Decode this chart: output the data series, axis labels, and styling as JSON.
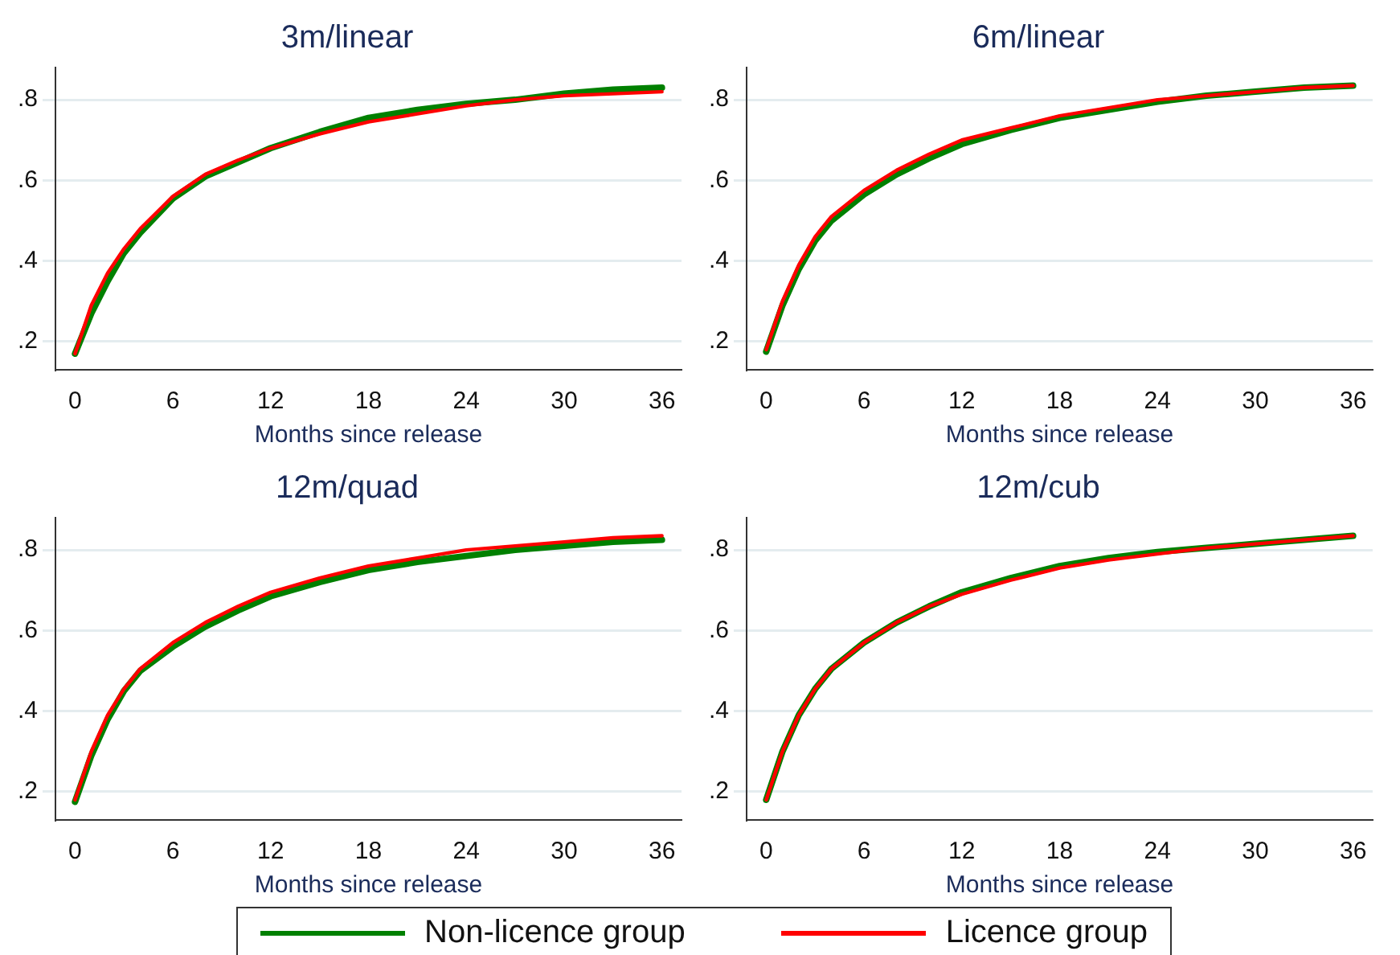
{
  "chart_data": [
    {
      "type": "line",
      "title": "3m/linear",
      "xlabel": "Months since release",
      "x": [
        0,
        1,
        2,
        3,
        4,
        6,
        8,
        10,
        12,
        15,
        18,
        21,
        24,
        27,
        30,
        33,
        36
      ],
      "xlim": [
        -1.2,
        37.2
      ],
      "xticks": [
        0,
        6,
        12,
        18,
        24,
        30,
        36
      ],
      "ylim": [
        0.13,
        0.88
      ],
      "yticks": [
        {
          "value": 0.2,
          "label": ".2"
        },
        {
          "value": 0.4,
          "label": ".4"
        },
        {
          "value": 0.6,
          "label": ".6"
        },
        {
          "value": 0.8,
          "label": ".8"
        }
      ],
      "grid": "y",
      "marker": "none",
      "line_style": "solid",
      "legend": "bottom",
      "series": [
        {
          "name": "Non-licence group",
          "color": "#008000",
          "values": [
            0.17,
            0.27,
            0.35,
            0.42,
            0.47,
            0.555,
            0.61,
            0.645,
            0.68,
            0.72,
            0.755,
            0.775,
            0.79,
            0.8,
            0.815,
            0.825,
            0.83
          ]
        },
        {
          "name": "Licence group",
          "color": "#ff0000",
          "values": [
            0.17,
            0.29,
            0.37,
            0.43,
            0.48,
            0.56,
            0.615,
            0.65,
            0.68,
            0.715,
            0.745,
            0.765,
            0.785,
            0.8,
            0.81,
            0.815,
            0.82
          ]
        }
      ]
    },
    {
      "type": "line",
      "title": "6m/linear",
      "xlabel": "Months since release",
      "x": [
        0,
        1,
        2,
        3,
        4,
        6,
        8,
        10,
        12,
        15,
        18,
        21,
        24,
        27,
        30,
        33,
        36
      ],
      "xlim": [
        -1.2,
        37.2
      ],
      "xticks": [
        0,
        6,
        12,
        18,
        24,
        30,
        36
      ],
      "ylim": [
        0.13,
        0.88
      ],
      "yticks": [
        {
          "value": 0.2,
          "label": ".2"
        },
        {
          "value": 0.4,
          "label": ".4"
        },
        {
          "value": 0.6,
          "label": ".6"
        },
        {
          "value": 0.8,
          "label": ".8"
        }
      ],
      "grid": "y",
      "marker": "none",
      "line_style": "solid",
      "series": [
        {
          "color": "#008000",
          "values": [
            0.175,
            0.29,
            0.38,
            0.45,
            0.5,
            0.565,
            0.615,
            0.655,
            0.69,
            0.725,
            0.755,
            0.775,
            0.795,
            0.81,
            0.82,
            0.83,
            0.835
          ]
        },
        {
          "color": "#ff0000",
          "values": [
            0.18,
            0.3,
            0.39,
            0.46,
            0.51,
            0.575,
            0.625,
            0.665,
            0.7,
            0.73,
            0.76,
            0.78,
            0.8,
            0.81,
            0.82,
            0.83,
            0.835
          ]
        }
      ]
    },
    {
      "type": "line",
      "title": "12m/quad",
      "xlabel": "Months since release",
      "x": [
        0,
        1,
        2,
        3,
        4,
        6,
        8,
        10,
        12,
        15,
        18,
        21,
        24,
        27,
        30,
        33,
        36
      ],
      "xlim": [
        -1.2,
        37.2
      ],
      "xticks": [
        0,
        6,
        12,
        18,
        24,
        30,
        36
      ],
      "ylim": [
        0.13,
        0.88
      ],
      "yticks": [
        {
          "value": 0.2,
          "label": ".2"
        },
        {
          "value": 0.4,
          "label": ".4"
        },
        {
          "value": 0.6,
          "label": ".6"
        },
        {
          "value": 0.8,
          "label": ".8"
        }
      ],
      "grid": "y",
      "marker": "none",
      "line_style": "solid",
      "series": [
        {
          "color": "#008000",
          "values": [
            0.175,
            0.29,
            0.38,
            0.45,
            0.5,
            0.56,
            0.61,
            0.65,
            0.685,
            0.72,
            0.75,
            0.77,
            0.785,
            0.8,
            0.81,
            0.82,
            0.825
          ]
        },
        {
          "color": "#ff0000",
          "values": [
            0.18,
            0.3,
            0.39,
            0.455,
            0.505,
            0.57,
            0.62,
            0.66,
            0.695,
            0.73,
            0.76,
            0.78,
            0.8,
            0.81,
            0.82,
            0.83,
            0.835
          ]
        }
      ]
    },
    {
      "type": "line",
      "title": "12m/cub",
      "xlabel": "Months since release",
      "x": [
        0,
        1,
        2,
        3,
        4,
        6,
        8,
        10,
        12,
        15,
        18,
        21,
        24,
        27,
        30,
        33,
        36
      ],
      "xlim": [
        -1.2,
        37.2
      ],
      "xticks": [
        0,
        6,
        12,
        18,
        24,
        30,
        36
      ],
      "ylim": [
        0.13,
        0.88
      ],
      "yticks": [
        {
          "value": 0.2,
          "label": ".2"
        },
        {
          "value": 0.4,
          "label": ".4"
        },
        {
          "value": 0.6,
          "label": ".6"
        },
        {
          "value": 0.8,
          "label": ".8"
        }
      ],
      "grid": "y",
      "marker": "none",
      "line_style": "solid",
      "series": [
        {
          "color": "#008000",
          "values": [
            0.18,
            0.3,
            0.39,
            0.455,
            0.505,
            0.57,
            0.62,
            0.66,
            0.695,
            0.73,
            0.76,
            0.78,
            0.795,
            0.805,
            0.815,
            0.825,
            0.835
          ]
        },
        {
          "color": "#ff0000",
          "values": [
            0.18,
            0.3,
            0.39,
            0.455,
            0.505,
            0.57,
            0.62,
            0.66,
            0.69,
            0.725,
            0.755,
            0.775,
            0.79,
            0.805,
            0.815,
            0.825,
            0.835
          ]
        }
      ]
    }
  ]
}
